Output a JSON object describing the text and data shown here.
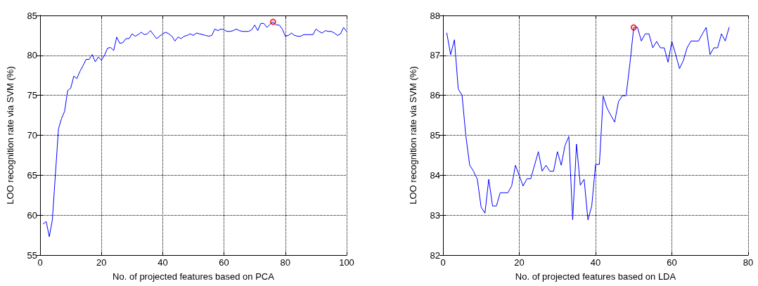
{
  "chart_data": [
    {
      "type": "line",
      "xlabel": "No. of projected features based on PCA",
      "ylabel": "LOO recognition rate via SVM (%)",
      "xlim": [
        0,
        100
      ],
      "xticks": [
        0,
        20,
        40,
        60,
        80,
        100
      ],
      "ylim": [
        55,
        85
      ],
      "yticks": [
        55,
        60,
        65,
        70,
        75,
        80,
        85
      ],
      "grid": true,
      "marker": "none",
      "line_style": "solid",
      "series": [
        {
          "color": "#0000ff",
          "x": [
            1,
            2,
            3,
            4,
            5,
            6,
            7,
            8,
            9,
            10,
            11,
            12,
            13,
            14,
            15,
            16,
            17,
            18,
            19,
            20,
            21,
            22,
            23,
            24,
            25,
            26,
            27,
            28,
            29,
            30,
            31,
            32,
            33,
            34,
            35,
            36,
            37,
            38,
            39,
            40,
            41,
            42,
            43,
            44,
            45,
            46,
            47,
            48,
            49,
            50,
            51,
            52,
            53,
            54,
            55,
            56,
            57,
            58,
            59,
            60,
            61,
            62,
            63,
            64,
            65,
            66,
            67,
            68,
            69,
            70,
            71,
            72,
            73,
            74,
            75,
            76,
            77,
            78,
            79,
            80,
            81,
            82,
            83,
            84,
            85,
            86,
            87,
            88,
            89,
            90,
            91,
            92,
            93,
            94,
            95,
            96,
            97,
            98,
            99,
            100
          ],
          "values": [
            58.9,
            59.2,
            57.3,
            59.4,
            65.1,
            70.8,
            72.1,
            73.0,
            75.6,
            75.9,
            77.4,
            77.1,
            78.0,
            78.7,
            79.5,
            79.5,
            80.1,
            79.2,
            79.8,
            79.4,
            80.0,
            80.9,
            81.0,
            80.6,
            82.3,
            81.5,
            81.6,
            82.1,
            82.1,
            82.7,
            82.4,
            82.6,
            82.9,
            82.6,
            82.7,
            83.1,
            82.6,
            82.1,
            82.4,
            82.7,
            82.9,
            82.7,
            82.4,
            81.8,
            82.3,
            82.1,
            82.4,
            82.5,
            82.7,
            82.5,
            82.8,
            82.7,
            82.6,
            82.5,
            82.4,
            82.5,
            83.3,
            83.1,
            83.3,
            83.2,
            83.0,
            83.0,
            83.1,
            83.3,
            83.1,
            83.0,
            83.0,
            83.0,
            83.2,
            83.8,
            83.1,
            84.0,
            84.0,
            83.5,
            83.9,
            84.2,
            83.8,
            83.8,
            83.3,
            82.4,
            82.5,
            82.8,
            82.5,
            82.4,
            82.4,
            82.6,
            82.6,
            82.6,
            82.6,
            83.3,
            83.0,
            82.8,
            83.1,
            83.0,
            83.0,
            82.8,
            82.5,
            82.7,
            83.5,
            83.0
          ]
        },
        {
          "type": "scatter",
          "marker": "circle",
          "color": "#ff0000",
          "x": [
            76
          ],
          "values": [
            84.2
          ]
        }
      ]
    },
    {
      "type": "line",
      "xlabel": "No. of projected features based on LDA",
      "ylabel": "LOO recognition rate via SVM (%)",
      "xlim": [
        0,
        80
      ],
      "xticks": [
        0,
        20,
        40,
        60,
        80
      ],
      "ylim": [
        82,
        88
      ],
      "yticks": [
        82,
        83,
        84,
        85,
        86,
        87,
        88
      ],
      "grid": true,
      "marker": "none",
      "line_style": "solid",
      "series": [
        {
          "color": "#0000ff",
          "x": [
            1,
            2,
            3,
            4,
            5,
            6,
            7,
            8,
            9,
            10,
            11,
            12,
            13,
            14,
            15,
            16,
            17,
            18,
            19,
            20,
            21,
            22,
            23,
            24,
            25,
            26,
            27,
            28,
            29,
            30,
            31,
            32,
            33,
            34,
            35,
            36,
            37,
            38,
            39,
            40,
            41,
            42,
            43,
            44,
            45,
            46,
            47,
            48,
            49,
            50,
            51,
            52,
            53,
            54,
            55,
            56,
            57,
            58,
            59,
            60,
            61,
            62,
            63,
            64,
            65,
            66,
            67,
            68,
            69,
            70,
            71,
            72,
            73,
            74,
            75
          ],
          "values": [
            87.56,
            87.02,
            87.39,
            86.16,
            86.0,
            84.98,
            84.25,
            84.1,
            83.9,
            83.2,
            83.05,
            83.9,
            83.23,
            83.23,
            83.56,
            83.56,
            83.56,
            83.73,
            84.25,
            83.99,
            83.73,
            83.91,
            83.91,
            84.25,
            84.59,
            84.1,
            84.25,
            84.1,
            84.1,
            84.59,
            84.25,
            84.75,
            84.97,
            82.88,
            84.78,
            83.75,
            83.9,
            82.88,
            83.23,
            84.27,
            84.27,
            85.98,
            85.68,
            85.5,
            85.33,
            85.84,
            85.99,
            85.99,
            86.79,
            87.7,
            87.7,
            87.36,
            87.54,
            87.54,
            87.19,
            87.35,
            87.19,
            87.19,
            86.83,
            87.35,
            87.02,
            86.67,
            86.87,
            87.19,
            87.36,
            87.36,
            87.36,
            87.54,
            87.7,
            87.02,
            87.19,
            87.19,
            87.54,
            87.36,
            87.7
          ]
        },
        {
          "type": "scatter",
          "marker": "circle",
          "color": "#ff0000",
          "x": [
            50
          ],
          "values": [
            87.7
          ]
        }
      ]
    }
  ]
}
